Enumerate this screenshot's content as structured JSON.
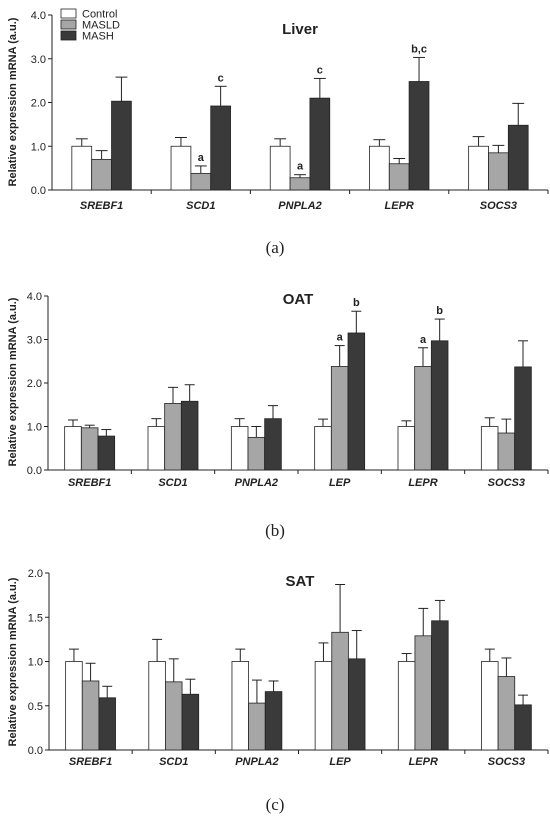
{
  "colors": {
    "Control": "#ffffff",
    "MASLD": "#a6a6a6",
    "MASH": "#3a3a3a",
    "stroke": "#222222"
  },
  "legend": [
    "Control",
    "MASLD",
    "MASH"
  ],
  "chart_data": [
    {
      "type": "bar",
      "title": "Liver",
      "panel_label": "(a)",
      "ylabel": "Relative expression mRNA (a.u.)",
      "ylim": [
        0,
        4.0
      ],
      "yticks": [
        "0.0",
        "1.0",
        "2.0",
        "3.0",
        "4.0"
      ],
      "categories": [
        "SREBF1",
        "SCD1",
        "PNPLA2",
        "LEPR",
        "SOCS3"
      ],
      "series": [
        {
          "name": "Control",
          "values": [
            1.0,
            1.0,
            1.0,
            1.0,
            1.0
          ],
          "errors": [
            0.17,
            0.2,
            0.17,
            0.15,
            0.22
          ]
        },
        {
          "name": "MASLD",
          "values": [
            0.7,
            0.38,
            0.28,
            0.6,
            0.85
          ],
          "errors": [
            0.2,
            0.17,
            0.07,
            0.12,
            0.17
          ]
        },
        {
          "name": "MASH",
          "values": [
            2.03,
            1.92,
            2.1,
            2.48,
            1.48
          ],
          "errors": [
            0.55,
            0.45,
            0.45,
            0.55,
            0.5
          ]
        }
      ],
      "annotations": [
        {
          "category": "SCD1",
          "series": "MASLD",
          "text": "a"
        },
        {
          "category": "SCD1",
          "series": "MASH",
          "text": "c"
        },
        {
          "category": "PNPLA2",
          "series": "MASLD",
          "text": "a"
        },
        {
          "category": "PNPLA2",
          "series": "MASH",
          "text": "c"
        },
        {
          "category": "LEPR",
          "series": "MASH",
          "text": "b,c"
        }
      ],
      "legend_position": "top-left"
    },
    {
      "type": "bar",
      "title": "OAT",
      "panel_label": "(b)",
      "ylabel": "Relative expression mRNA (a.u.)",
      "ylim": [
        0,
        4.0
      ],
      "yticks": [
        "0.0",
        "1.0",
        "2.0",
        "3.0",
        "4.0"
      ],
      "categories": [
        "SREBF1",
        "SCD1",
        "PNPLA2",
        "LEP",
        "LEPR",
        "SOCS3"
      ],
      "series": [
        {
          "name": "Control",
          "values": [
            1.0,
            1.0,
            1.0,
            1.0,
            1.0,
            1.0
          ],
          "errors": [
            0.15,
            0.18,
            0.18,
            0.17,
            0.13,
            0.2
          ]
        },
        {
          "name": "MASLD",
          "values": [
            0.97,
            1.53,
            0.75,
            2.38,
            2.38,
            0.85
          ],
          "errors": [
            0.06,
            0.37,
            0.25,
            0.48,
            0.43,
            0.32
          ]
        },
        {
          "name": "MASH",
          "values": [
            0.78,
            1.58,
            1.18,
            3.15,
            2.97,
            2.37
          ],
          "errors": [
            0.15,
            0.38,
            0.3,
            0.5,
            0.5,
            0.6
          ]
        }
      ],
      "annotations": [
        {
          "category": "LEP",
          "series": "MASLD",
          "text": "a"
        },
        {
          "category": "LEP",
          "series": "MASH",
          "text": "b"
        },
        {
          "category": "LEPR",
          "series": "MASLD",
          "text": "a"
        },
        {
          "category": "LEPR",
          "series": "MASH",
          "text": "b"
        }
      ]
    },
    {
      "type": "bar",
      "title": "SAT",
      "panel_label": "(c)",
      "ylabel": "Relative expression mRNA (a.u.)",
      "ylim": [
        0,
        2.0
      ],
      "yticks": [
        "0.0",
        "0.5",
        "1.0",
        "1.5",
        "2.0"
      ],
      "categories": [
        "SREBF1",
        "SCD1",
        "PNPLA2",
        "LEP",
        "LEPR",
        "SOCS3"
      ],
      "series": [
        {
          "name": "Control",
          "values": [
            1.0,
            1.0,
            1.0,
            1.0,
            1.0,
            1.0
          ],
          "errors": [
            0.14,
            0.25,
            0.14,
            0.21,
            0.09,
            0.14
          ]
        },
        {
          "name": "MASLD",
          "values": [
            0.78,
            0.77,
            0.53,
            1.33,
            1.29,
            0.83
          ],
          "errors": [
            0.2,
            0.26,
            0.26,
            0.54,
            0.31,
            0.21
          ]
        },
        {
          "name": "MASH",
          "values": [
            0.59,
            0.63,
            0.66,
            1.03,
            1.46,
            0.51
          ],
          "errors": [
            0.13,
            0.17,
            0.12,
            0.32,
            0.23,
            0.11
          ]
        }
      ]
    }
  ]
}
